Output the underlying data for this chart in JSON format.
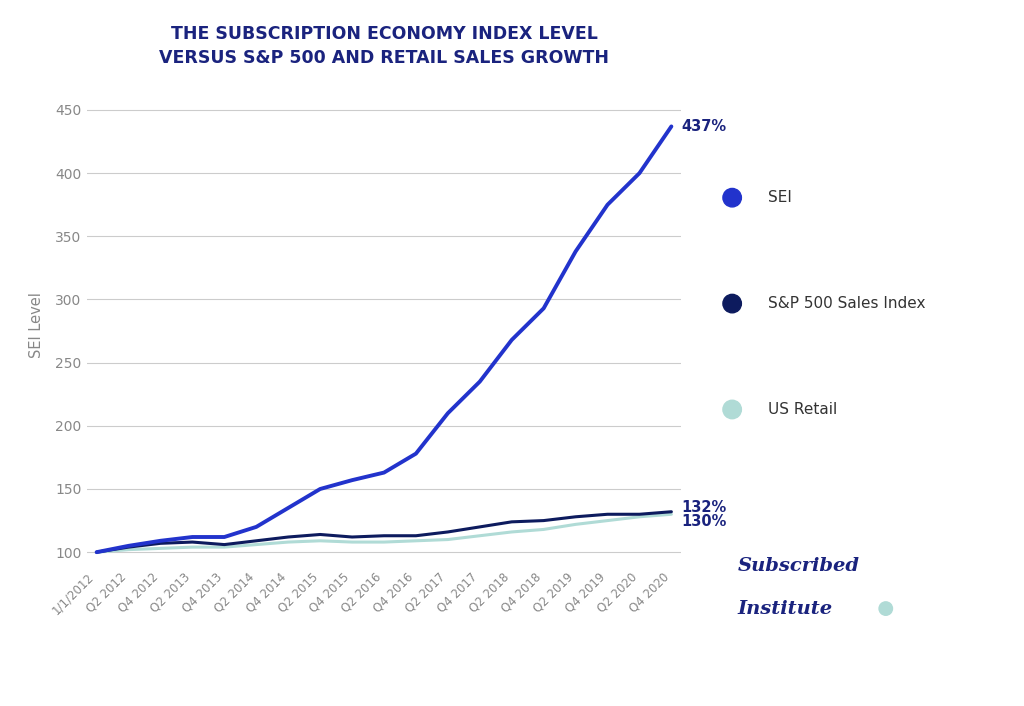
{
  "title_line1": "THE SUBSCRIPTION ECONOMY INDEX LEVEL",
  "title_line2": "VERSUS S&P 500 AND RETAIL SALES GROWTH",
  "ylabel": "SEI Level",
  "ylim": [
    90,
    470
  ],
  "yticks": [
    100,
    150,
    200,
    250,
    300,
    350,
    400,
    450
  ],
  "background_color": "#ffffff",
  "grid_color": "#cccccc",
  "sei_color": "#2233cc",
  "sp500_color": "#0d1b5e",
  "retail_color": "#b0dbd6",
  "sei_label": "SEI",
  "sp500_label": "S&P 500 Sales Index",
  "retail_label": "US Retail",
  "sei_end_pct": "437%",
  "sp500_end_pct": "132%",
  "retail_end_pct": "130%",
  "brand_text_line1": "Subscribed",
  "brand_text_line2": "Institute",
  "brand_color": "#1a237e",
  "brand_dot_color": "#b0dbd6",
  "x_labels": [
    "1/1/2012",
    "Q2 2012",
    "Q4 2012",
    "Q2 2013",
    "Q4 2013",
    "Q2 2014",
    "Q4 2014",
    "Q2 2015",
    "Q4 2015",
    "Q2 2016",
    "Q4 2016",
    "Q2 2017",
    "Q4 2017",
    "Q2 2018",
    "Q4 2018",
    "Q2 2019",
    "Q4 2019",
    "Q2 2020",
    "Q4 2020"
  ],
  "sei_values": [
    100,
    105,
    109,
    112,
    112,
    120,
    135,
    150,
    157,
    163,
    178,
    210,
    235,
    268,
    293,
    338,
    375,
    400,
    437
  ],
  "sp500_values": [
    100,
    104,
    107,
    108,
    106,
    109,
    112,
    114,
    112,
    113,
    113,
    116,
    120,
    124,
    125,
    128,
    130,
    130,
    132
  ],
  "retail_values": [
    100,
    102,
    103,
    104,
    104,
    106,
    108,
    109,
    108,
    108,
    109,
    110,
    113,
    116,
    118,
    122,
    125,
    128,
    130
  ],
  "title_color": "#1a237e",
  "tick_color": "#888888",
  "end_label_color": "#1a237e"
}
